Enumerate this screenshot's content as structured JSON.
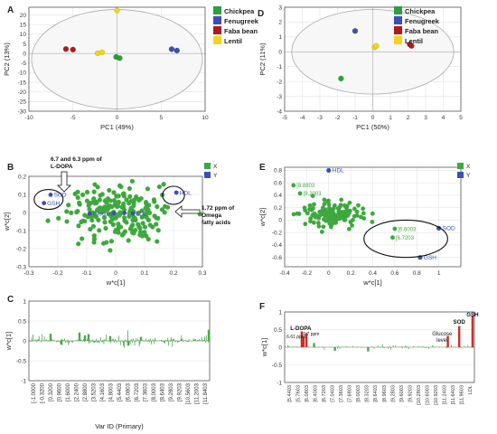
{
  "colors": {
    "chickpea": "#2e9e3e",
    "fenugreek": "#3b4fb4",
    "faba_bean": "#b21a1a",
    "lentil": "#f2d41c",
    "x_green": "#3ea83e",
    "y_blue": "#3b4fb4",
    "spectrum_green": "#4aa84a",
    "spectrum_red": "#c8302c",
    "axis": "#555555",
    "grid": "#e2e2e2",
    "ellipse": "#aaaaaa"
  },
  "chart_data": [
    {
      "panel_label": "A",
      "type": "scatter",
      "xlabel": "PC1 (49%)",
      "ylabel": "PC2 (13%)",
      "xlim": [
        -10,
        10
      ],
      "ylim": [
        -30,
        24
      ],
      "xticks": [
        -10,
        -5,
        0,
        5,
        10
      ],
      "yticks": [
        -30,
        -25,
        -20,
        -15,
        -10,
        -5,
        0,
        5,
        10,
        15,
        20
      ],
      "grid": true,
      "legend_position": "top-right",
      "ellipse": {
        "cx": 0,
        "cy": -3,
        "rx": 9.7,
        "ry": 25.8
      },
      "series": [
        {
          "name": "Chickpea",
          "color_key": "chickpea",
          "points": [
            [
              -0.1,
              -1.8
            ],
            [
              0.3,
              -2.4
            ]
          ]
        },
        {
          "name": "Fenugreek",
          "color_key": "fenugreek",
          "points": [
            [
              6.2,
              2.2
            ],
            [
              6.8,
              1.5
            ]
          ]
        },
        {
          "name": "Faba bean",
          "color_key": "faba_bean",
          "points": [
            [
              -5.8,
              2.3
            ],
            [
              -5.0,
              2.0
            ]
          ]
        },
        {
          "name": "Lentil",
          "color_key": "lentil",
          "points": [
            [
              -2.2,
              0.1
            ],
            [
              -1.7,
              0.6
            ],
            [
              0,
              22.3
            ]
          ]
        }
      ]
    },
    {
      "panel_label": "D",
      "type": "scatter",
      "xlabel": "PC1 (50%)",
      "ylabel": "PC2 (11%)",
      "xlim": [
        -5,
        5
      ],
      "ylim": [
        -4,
        3
      ],
      "xticks": [
        -5,
        -4,
        -3,
        -2,
        -1,
        0,
        1,
        2,
        3,
        4,
        5
      ],
      "yticks": [
        -4,
        -3,
        -2,
        -1,
        0,
        1,
        2,
        3
      ],
      "grid": true,
      "legend_position": "top-right",
      "ellipse": {
        "cx": 0,
        "cy": 0,
        "rx": 4.6,
        "ry": 2.85
      },
      "series": [
        {
          "name": "Chickpea",
          "color_key": "chickpea",
          "points": [
            [
              -1.8,
              -1.8
            ]
          ]
        },
        {
          "name": "Fenugreek",
          "color_key": "fenugreek",
          "points": [
            [
              -1.0,
              1.4
            ]
          ]
        },
        {
          "name": "Faba bean",
          "color_key": "faba_bean",
          "points": [
            [
              2.1,
              0.5
            ],
            [
              2.2,
              0.4
            ]
          ]
        },
        {
          "name": "Lentil",
          "color_key": "lentil",
          "points": [
            [
              0.1,
              0.3
            ],
            [
              0.2,
              0.4
            ]
          ]
        }
      ]
    },
    {
      "panel_label": "B",
      "type": "scatter",
      "xlabel": "w*c[1]",
      "ylabel": "w*c[2]",
      "xlim": [
        -0.3,
        0.3
      ],
      "ylim": [
        -0.3,
        0.2
      ],
      "xticks": [
        -0.3,
        -0.2,
        -0.1,
        0,
        0.1,
        0.2,
        0.3
      ],
      "yticks": [
        -0.3,
        -0.2,
        -0.1,
        0,
        0.1,
        0.2
      ],
      "grid": true,
      "legend_position": "top-right",
      "legend": [
        "X",
        "Y"
      ],
      "x_cloud": {
        "cx": 0.01,
        "cy": -0.01,
        "sx": 0.085,
        "sy": 0.075,
        "count": 220,
        "seed": 7
      },
      "y_points": [
        {
          "label": "SOD",
          "x": -0.225,
          "y": 0.098
        },
        {
          "label": "GSH",
          "x": -0.248,
          "y": 0.052
        },
        {
          "label": "HDL",
          "x": 0.21,
          "y": 0.11
        },
        {
          "label": "Glucose",
          "x": -0.09,
          "y": -0.006
        },
        {
          "label": "",
          "x": -0.005,
          "y": -0.004
        },
        {
          "label": "",
          "x": 0.03,
          "y": -0.003
        },
        {
          "label": "LDL",
          "x": 0.06,
          "y": -0.005
        }
      ],
      "circles": [
        {
          "cx": -0.232,
          "cy": 0.072,
          "rx": 0.05,
          "ry": 0.055
        },
        {
          "cx": 0.2,
          "cy": 0.095,
          "rx": 0.038,
          "ry": 0.05
        }
      ],
      "annotations": [
        {
          "lines": [
            "6.7 and 6.3 ppm of",
            "L-DOPA"
          ]
        },
        {
          "lines": [
            "1.72 ppm of",
            "Omega",
            "fatty acids"
          ]
        }
      ]
    },
    {
      "panel_label": "E",
      "type": "scatter",
      "xlabel": "w*c[1]",
      "ylabel": "w*c[2]",
      "xlim": [
        -0.4,
        1.2
      ],
      "ylim": [
        -0.75,
        0.85
      ],
      "xticks": [
        -0.4,
        -0.2,
        0,
        0.2,
        0.4,
        0.6,
        0.8,
        1
      ],
      "yticks": [
        -0.6,
        -0.4,
        -0.2,
        0,
        0.2,
        0.4,
        0.6,
        0.8
      ],
      "grid": true,
      "legend_position": "top-right",
      "legend": [
        "X",
        "Y"
      ],
      "x_cloud": {
        "cx": 0.02,
        "cy": 0.1,
        "sx": 0.11,
        "sy": 0.1,
        "count": 130,
        "seed": 11
      },
      "y_points": [
        {
          "label": "HDL",
          "x": 0.0,
          "y": 0.8
        },
        {
          "label": "SOD",
          "x": 1.0,
          "y": -0.13
        },
        {
          "label": "GSH",
          "x": 0.83,
          "y": -0.6
        }
      ],
      "point_labels": [
        {
          "label": "[8.8803",
          "x": -0.32,
          "y": 0.56
        },
        {
          "label": "[9.2003",
          "x": -0.26,
          "y": 0.43
        },
        {
          "label": "[6.6003",
          "x": 0.6,
          "y": -0.14
        },
        {
          "label": "[6.7203",
          "x": 0.58,
          "y": -0.28
        }
      ],
      "circles": [
        {
          "cx": 0.7,
          "cy": -0.3,
          "rx": 0.38,
          "ry": 0.3
        }
      ]
    },
    {
      "panel_label": "C",
      "type": "bar",
      "xlabel": "Var ID (Primary)",
      "ylabel": "w*c[1]",
      "ylim": [
        -1,
        1
      ],
      "yticks": [
        -1,
        -0.5,
        0,
        0.5,
        1
      ],
      "grid": true,
      "categories": [
        "[-1.0000",
        "[-0.3200",
        "[0.3200",
        "[0.9600",
        "[1.6000",
        "[2.2400",
        "[2.8800",
        "[3.5203",
        "[4.1603",
        "[4.8003",
        "[5.4403",
        "[6.0803",
        "[6.7203",
        "[7.3603",
        "[8.0003",
        "[8.6403",
        "[9.2803",
        "[9.9203",
        "[10.5603",
        "[11.2003",
        "[11.8403"
      ],
      "spectrum": {
        "count": 240,
        "seed": 3,
        "scale": 0.07
      },
      "spikes": [
        {
          "pos": 0.12,
          "value": 0.18
        },
        {
          "pos": 0.28,
          "value": 0.21
        },
        {
          "pos": 0.31,
          "value": 0.14
        },
        {
          "pos": 0.33,
          "value": 0.17
        },
        {
          "pos": 0.45,
          "value": 0.12
        },
        {
          "pos": 0.55,
          "value": -0.12
        },
        {
          "pos": 0.62,
          "value": 0.1
        },
        {
          "pos": 0.18,
          "value": -0.1
        },
        {
          "pos": 0.995,
          "value": 0.28
        }
      ]
    },
    {
      "panel_label": "F",
      "type": "bar",
      "xlabel": "",
      "ylabel": "w*c[1]",
      "ylim": [
        -1,
        1
      ],
      "yticks": [
        -1,
        -0.5,
        0,
        0.5,
        1
      ],
      "grid": true,
      "categories": [
        "[5.4403",
        "[5.7603",
        "[6.0803",
        "[6.4003",
        "[6.7203",
        "[7.0403",
        "[7.3603",
        "[7.6803",
        "[8.0003",
        "[8.3203",
        "[8.6403",
        "[8.9603",
        "[9.2803",
        "[9.6003",
        "[9.9203",
        "[10.2803",
        "[10.6003",
        "[10.9203",
        "[11.2403",
        "[11.6403",
        "[11.9603",
        "LDL"
      ],
      "spectrum": {
        "count": 160,
        "seed": 5,
        "scale": 0.035
      },
      "spikes": [
        {
          "pos": 0.09,
          "value": 0.45,
          "color_key": "spectrum_red"
        },
        {
          "pos": 0.1,
          "value": 0.3,
          "color_key": "spectrum_red"
        },
        {
          "pos": 0.115,
          "value": 0.4,
          "color_key": "spectrum_red"
        },
        {
          "pos": 0.155,
          "value": 0.12
        },
        {
          "pos": 0.265,
          "value": -0.1
        },
        {
          "pos": 0.44,
          "value": -0.12
        },
        {
          "pos": 0.86,
          "value": 0.32,
          "color_key": "spectrum_red"
        },
        {
          "pos": 0.92,
          "value": 0.6,
          "color_key": "spectrum_red"
        },
        {
          "pos": 0.99,
          "value": 0.9,
          "color_key": "spectrum_red"
        }
      ],
      "annotations": [
        {
          "label": "L-DOPA"
        },
        {
          "label": "6.61 ppm"
        },
        {
          "label": "6.7 ppm"
        },
        {
          "label": "Glucose"
        },
        {
          "label": "level"
        },
        {
          "label": "SOD"
        },
        {
          "label": "GSH"
        }
      ]
    }
  ]
}
